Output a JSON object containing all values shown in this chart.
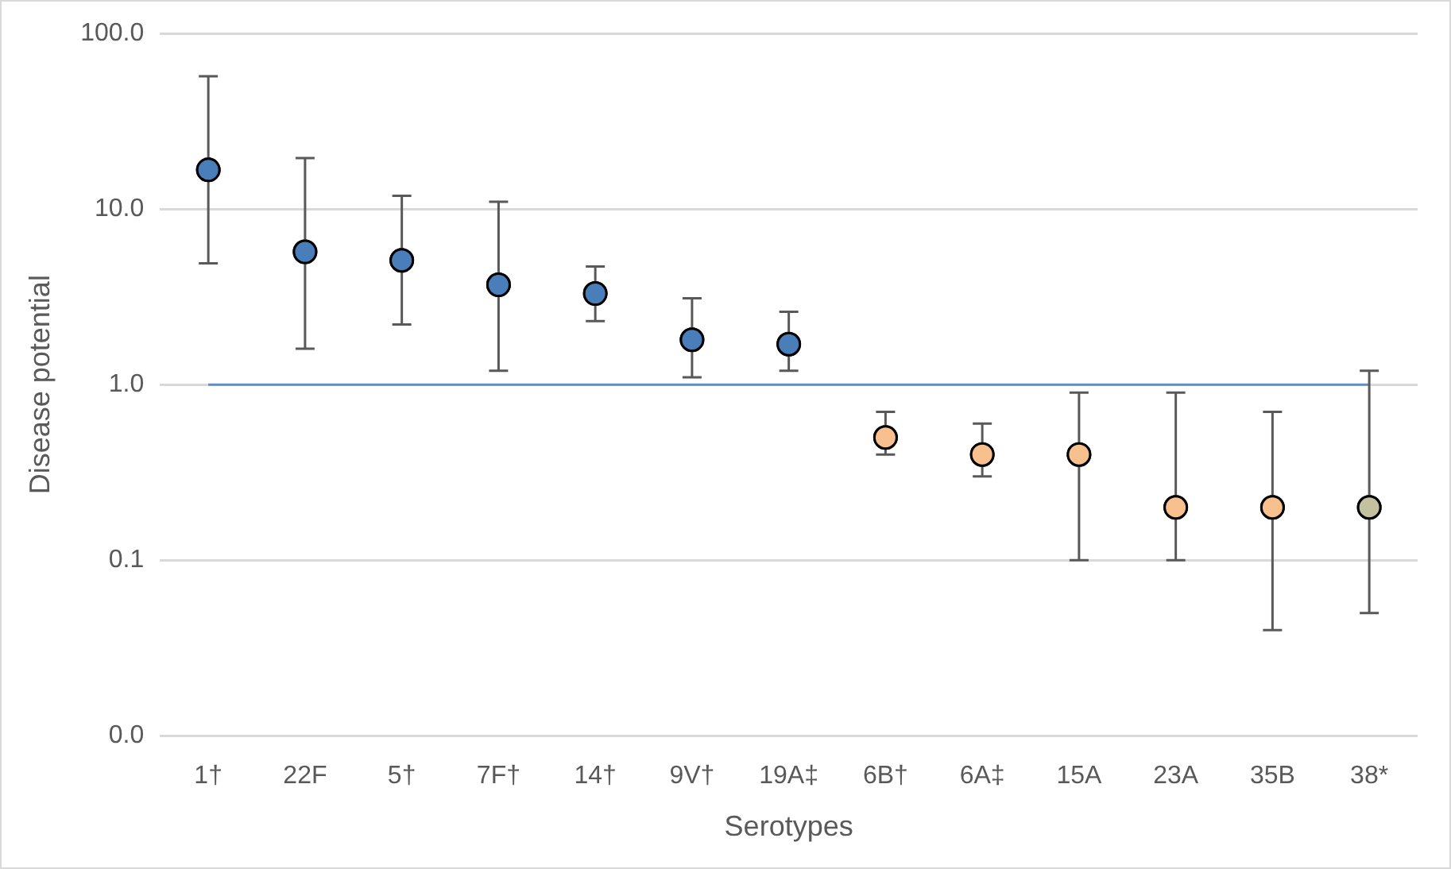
{
  "chart_data": {
    "type": "scatter",
    "xlabel": "Serotypes",
    "ylabel": "Disease potential",
    "categories": [
      "1†",
      "22F",
      "5†",
      "7F†",
      "14†",
      "9V†",
      "19A‡",
      "6B†",
      "6A‡",
      "15A",
      "23A",
      "35B",
      "38*"
    ],
    "series": [
      {
        "values": [
          16.7,
          5.7,
          5.1,
          3.7,
          3.3,
          1.8,
          1.7,
          0.5,
          0.4,
          0.4,
          0.2,
          0.2,
          0.2
        ],
        "colors": [
          "#4a7ebb",
          "#4a7ebb",
          "#4a7ebb",
          "#4a7ebb",
          "#4a7ebb",
          "#4a7ebb",
          "#4a7ebb",
          "#f9c08f",
          "#f9c08f",
          "#f9c08f",
          "#f9c08f",
          "#f9c08f",
          "#c4c1a0"
        ],
        "errors": [
          [
            4.9,
            57
          ],
          [
            1.6,
            19.5
          ],
          [
            2.2,
            11.9
          ],
          [
            1.2,
            11
          ],
          [
            2.3,
            4.7
          ],
          [
            1.1,
            3.1
          ],
          [
            1.2,
            2.6
          ],
          [
            0.4,
            0.7
          ],
          [
            0.3,
            0.6
          ],
          [
            0.1,
            0.9
          ],
          [
            0.1,
            0.9
          ],
          [
            0.04,
            0.7
          ],
          [
            0.05,
            1.2
          ]
        ]
      }
    ],
    "log": "y",
    "ylim": [
      0.01,
      100
    ],
    "yticks": [
      {
        "value": 0.01,
        "label": "0.0"
      },
      {
        "value": 0.1,
        "label": "0.1"
      },
      {
        "value": 1,
        "label": "1.0"
      },
      {
        "value": 10,
        "label": "10.0"
      },
      {
        "value": 100,
        "label": "100.0"
      }
    ],
    "grid": "y",
    "marker": "circle",
    "legend": false,
    "ref_lines": [
      {
        "axis": "y",
        "value": 1,
        "color": "#5b8fd0"
      }
    ]
  }
}
